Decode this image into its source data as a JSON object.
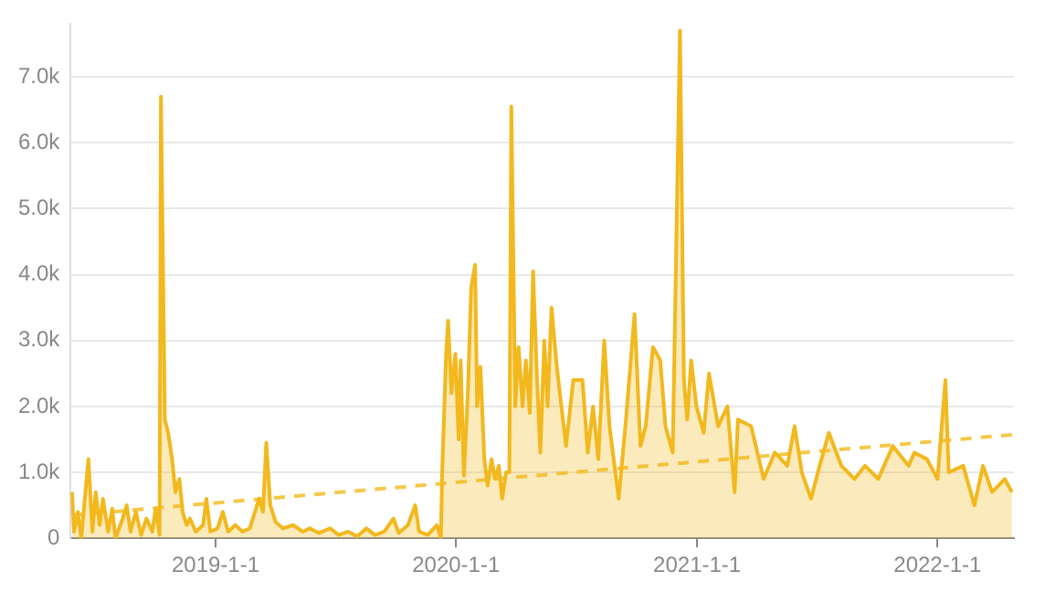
{
  "chart_data": {
    "type": "area",
    "xlim": [
      "2018-05-26",
      "2022-04-27"
    ],
    "ylim": [
      0,
      7800
    ],
    "xticks": [
      {
        "value": "2019-01-01",
        "label": "2019-1-1"
      },
      {
        "value": "2020-01-01",
        "label": "2020-1-1"
      },
      {
        "value": "2021-01-01",
        "label": "2021-1-1"
      },
      {
        "value": "2022-01-01",
        "label": "2022-1-1"
      }
    ],
    "yticks": [
      0,
      {
        "value": 1000,
        "label": "1.0k"
      },
      {
        "value": 2000,
        "label": "2.0k"
      },
      {
        "value": 3000,
        "label": "3.0k"
      },
      {
        "value": 4000,
        "label": "4.0k"
      },
      {
        "value": 5000,
        "label": "5.0k"
      },
      {
        "value": 6000,
        "label": "6.0k"
      },
      {
        "value": 7000,
        "label": "7.0k"
      }
    ],
    "grid": "y",
    "legend": false,
    "marker": "none",
    "series": [
      {
        "color": "#f2b81e",
        "x": [
          "2018-05-28",
          "2018-05-31",
          "2018-06-06",
          "2018-06-11",
          "2018-06-22",
          "2018-06-28",
          "2018-07-03",
          "2018-07-09",
          "2018-07-14",
          "2018-07-22",
          "2018-07-28",
          "2018-08-02",
          "2018-08-13",
          "2018-08-19",
          "2018-08-25",
          "2018-09-02",
          "2018-09-10",
          "2018-09-18",
          "2018-09-27",
          "2018-10-02",
          "2018-10-08",
          "2018-10-10",
          "2018-10-16",
          "2018-10-21",
          "2018-10-27",
          "2018-11-01",
          "2018-11-07",
          "2018-11-12",
          "2018-11-18",
          "2018-11-23",
          "2018-12-02",
          "2018-12-13",
          "2018-12-18",
          "2018-12-24",
          "2019-01-04",
          "2019-01-12",
          "2019-01-20",
          "2019-01-31",
          "2019-02-11",
          "2019-02-22",
          "2019-03-08",
          "2019-03-14",
          "2019-03-19",
          "2019-03-25",
          "2019-04-02",
          "2019-04-13",
          "2019-04-29",
          "2019-05-13",
          "2019-05-24",
          "2019-06-07",
          "2019-06-24",
          "2019-07-07",
          "2019-07-21",
          "2019-08-04",
          "2019-08-18",
          "2019-08-31",
          "2019-09-14",
          "2019-09-28",
          "2019-10-06",
          "2019-10-20",
          "2019-10-31",
          "2019-11-06",
          "2019-11-19",
          "2019-12-03",
          "2019-12-09",
          "2019-12-11",
          "2019-12-17",
          "2019-12-20",
          "2019-12-25",
          "2019-12-31",
          "2020-01-05",
          "2020-01-08",
          "2020-01-13",
          "2020-01-19",
          "2020-01-24",
          "2020-01-30",
          "2020-02-02",
          "2020-02-07",
          "2020-02-13",
          "2020-02-18",
          "2020-02-24",
          "2020-02-29",
          "2020-03-06",
          "2020-03-11",
          "2020-03-17",
          "2020-03-22",
          "2020-03-25",
          "2020-03-31",
          "2020-04-05",
          "2020-04-11",
          "2020-04-16",
          "2020-04-22",
          "2020-04-27",
          "2020-05-03",
          "2020-05-08",
          "2020-05-14",
          "2020-05-19",
          "2020-05-25",
          "2020-06-02",
          "2020-06-16",
          "2020-06-27",
          "2020-07-11",
          "2020-07-19",
          "2020-07-27",
          "2020-08-04",
          "2020-08-13",
          "2020-08-21",
          "2020-09-04",
          "2020-09-15",
          "2020-09-28",
          "2020-10-07",
          "2020-10-15",
          "2020-10-26",
          "2020-11-06",
          "2020-11-14",
          "2020-11-25",
          "2020-12-06",
          "2020-12-12",
          "2020-12-17",
          "2020-12-23",
          "2020-12-31",
          "2021-01-11",
          "2021-01-19",
          "2021-02-02",
          "2021-02-16",
          "2021-02-27",
          "2021-03-04",
          "2021-03-24",
          "2021-04-12",
          "2021-04-29",
          "2021-05-18",
          "2021-05-29",
          "2021-06-09",
          "2021-06-23",
          "2021-07-06",
          "2021-07-20",
          "2021-08-08",
          "2021-08-28",
          "2021-09-13",
          "2021-10-03",
          "2021-10-25",
          "2021-11-18",
          "2021-11-27",
          "2021-12-16",
          "2022-01-01",
          "2022-01-13",
          "2022-01-18",
          "2022-02-09",
          "2022-02-26",
          "2022-03-11",
          "2022-03-25",
          "2022-04-13",
          "2022-04-24"
        ],
        "values": [
          700,
          100,
          400,
          0,
          1200,
          100,
          700,
          200,
          600,
          100,
          450,
          0,
          300,
          500,
          100,
          400,
          50,
          300,
          100,
          450,
          50,
          6700,
          1800,
          1600,
          1200,
          700,
          900,
          400,
          200,
          300,
          100,
          200,
          600,
          100,
          150,
          400,
          100,
          200,
          100,
          150,
          600,
          400,
          1450,
          500,
          250,
          150,
          200,
          100,
          150,
          80,
          150,
          50,
          100,
          30,
          150,
          50,
          100,
          300,
          80,
          200,
          500,
          100,
          50,
          200,
          0,
          1000,
          2800,
          3300,
          2200,
          2800,
          1500,
          2700,
          950,
          2200,
          3800,
          4150,
          2000,
          2600,
          1200,
          800,
          1200,
          900,
          1100,
          600,
          1000,
          1000,
          6550,
          2000,
          2900,
          2000,
          2700,
          1900,
          4050,
          2400,
          1300,
          3000,
          2000,
          3500,
          2600,
          1400,
          2400,
          2400,
          1300,
          2000,
          1200,
          3000,
          1700,
          600,
          1800,
          3400,
          1400,
          1700,
          2900,
          2700,
          1700,
          1300,
          7700,
          2400,
          1800,
          2700,
          2000,
          1600,
          2500,
          1700,
          2000,
          700,
          1800,
          1700,
          900,
          1300,
          1100,
          1700,
          1000,
          600,
          1100,
          1600,
          1100,
          900,
          1100,
          900,
          1400,
          1100,
          1300,
          1200,
          900,
          2400,
          1000,
          1100,
          500,
          1100,
          700,
          900,
          700
        ]
      },
      {
        "type": "line",
        "color": "#f5c84a",
        "line_style": "dashed",
        "x": [
          "2018-05-28",
          "2022-04-24"
        ],
        "values": [
          350,
          1570
        ]
      }
    ]
  }
}
